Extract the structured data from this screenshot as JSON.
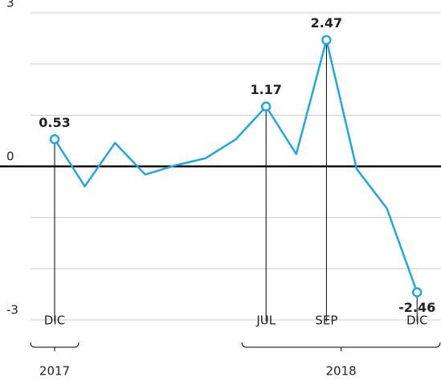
{
  "chart_data": {
    "type": "line",
    "categories": [
      "DIC",
      null,
      null,
      null,
      null,
      null,
      null,
      "JUL",
      null,
      "SEP",
      null,
      null,
      "DIC"
    ],
    "series": [
      {
        "color": "#1ea7e1",
        "values": [
          0.53,
          -0.39,
          0.46,
          -0.16,
          0.02,
          0.16,
          0.53,
          1.17,
          0.24,
          2.47,
          -0.05,
          -0.82,
          -2.46
        ]
      }
    ],
    "labeled_points": [
      0,
      7,
      9,
      12
    ],
    "ylim": [
      -3,
      3
    ],
    "yticks": [
      -3,
      0,
      3
    ],
    "grid_lines": [
      -2,
      -1,
      1,
      2
    ],
    "grid": true,
    "years": [
      {
        "label": "2017",
        "from": 0,
        "to": 0
      },
      {
        "label": "2018",
        "from": 7,
        "to": 12
      }
    ]
  }
}
